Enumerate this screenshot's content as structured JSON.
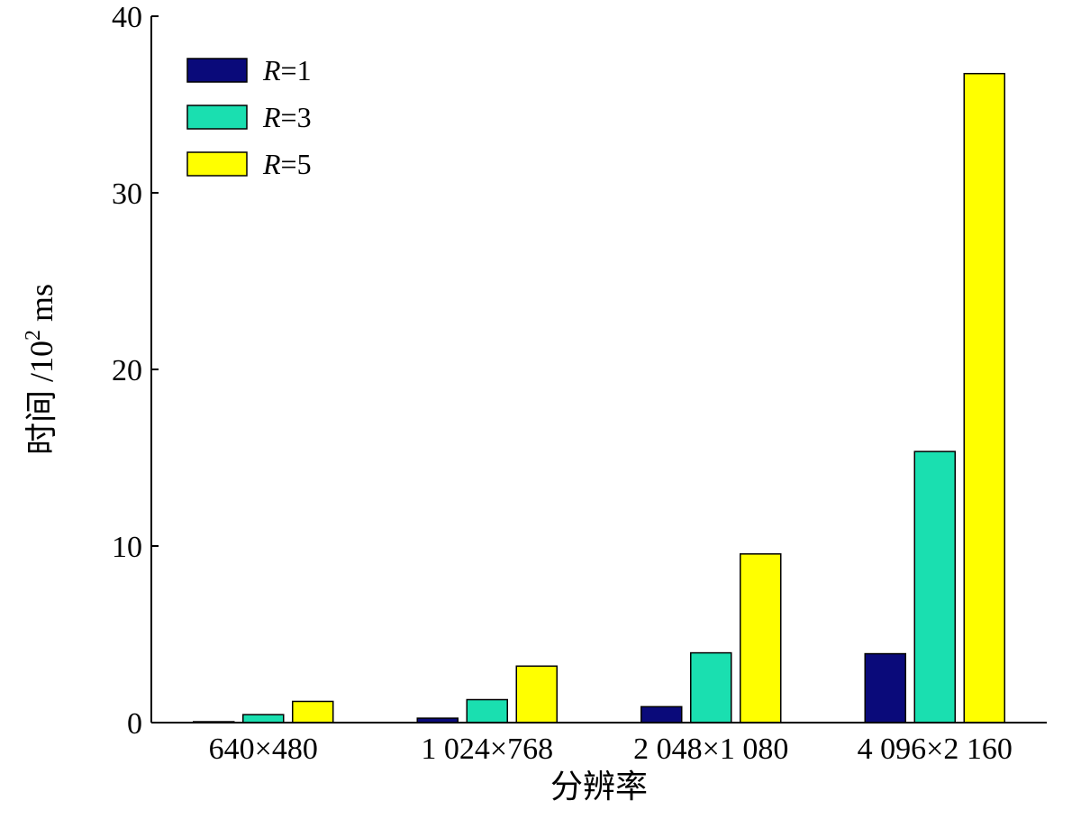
{
  "chart_data": {
    "type": "bar",
    "xlabel": "分辨率",
    "ylabel": {
      "text": "时间 /10",
      "superscript": "2",
      "unit": " ms"
    },
    "categories": [
      "640×480",
      "1 024×768",
      "2 048×1 080",
      "4 096×2 160"
    ],
    "series": [
      {
        "name": "R=1",
        "name_var": "R",
        "name_suffix": "=1",
        "color": "#0a0a7a",
        "values": [
          0.05,
          0.25,
          0.9,
          3.9
        ]
      },
      {
        "name": "R=3",
        "name_var": "R",
        "name_suffix": "=3",
        "color": "#1adfb0",
        "values": [
          0.45,
          1.3,
          3.95,
          15.35
        ]
      },
      {
        "name": "R=5",
        "name_var": "R",
        "name_suffix": "=5",
        "color": "#ffff00",
        "values": [
          1.2,
          3.2,
          9.55,
          36.75
        ]
      }
    ],
    "ylim": [
      0,
      40
    ],
    "yticks": [
      0,
      10,
      20,
      30,
      40
    ],
    "grid": false,
    "legend_position": "top-left"
  }
}
